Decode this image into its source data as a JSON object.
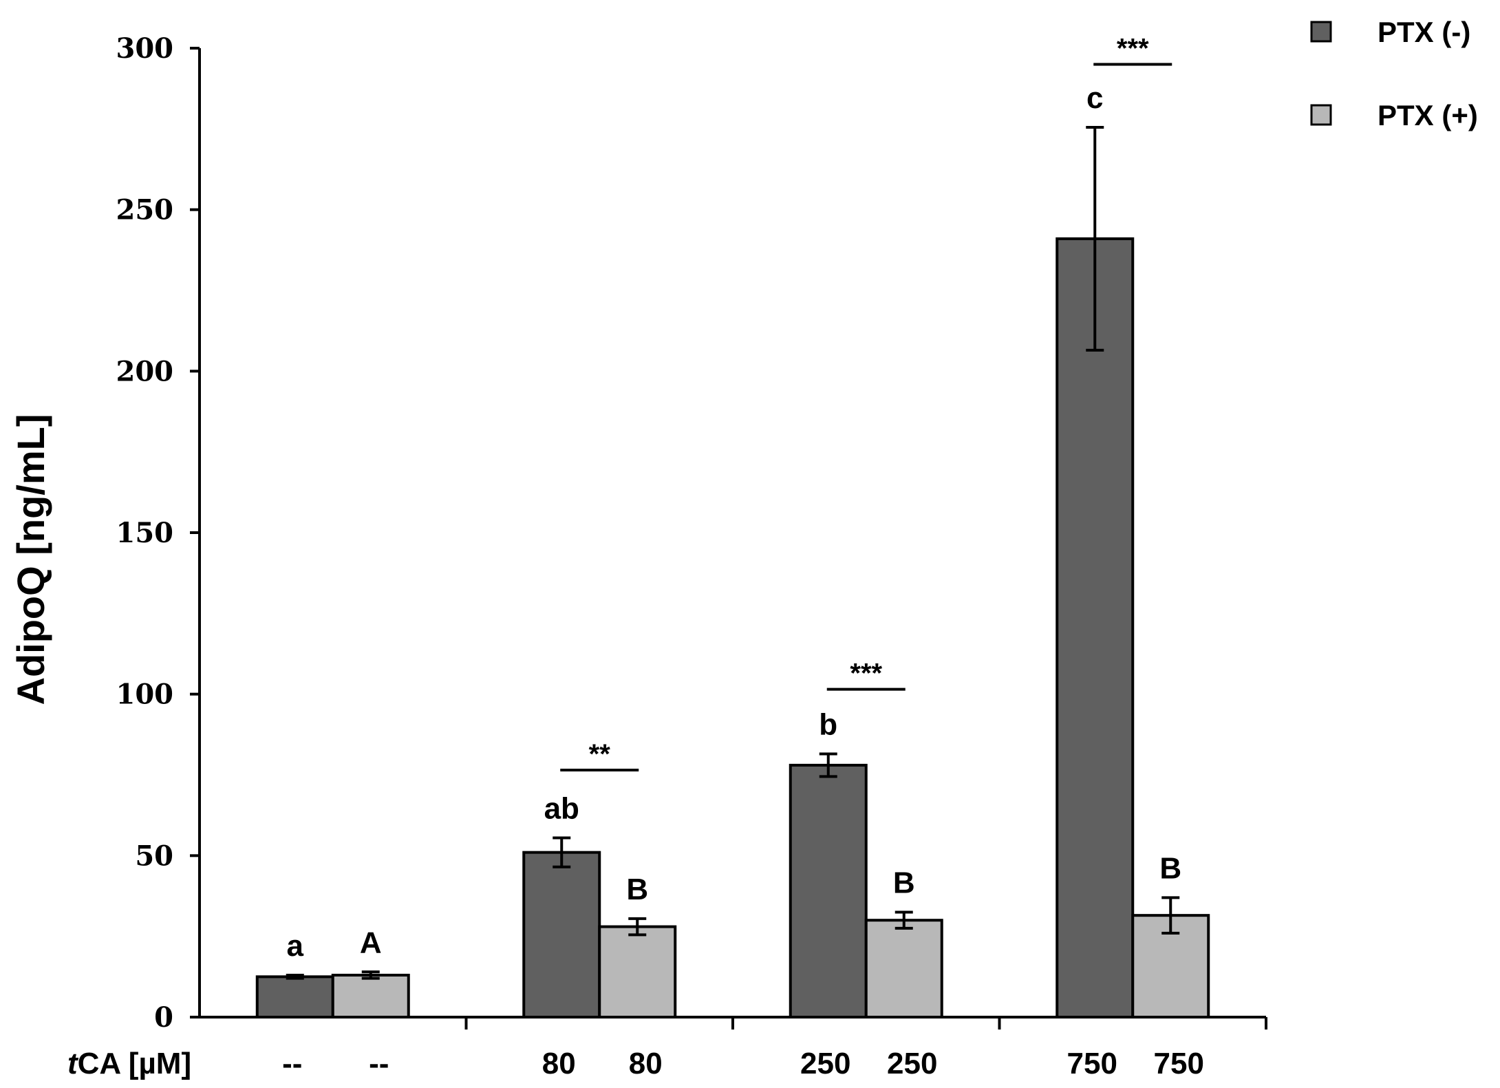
{
  "chart_data": {
    "type": "bar",
    "ylabel": "AdipoQ [ng/mL]",
    "xlabel_italic": "t",
    "xlabel_rest": "CA [µM]",
    "ylim": [
      0,
      300
    ],
    "yticks": [
      0,
      50,
      100,
      150,
      200,
      250,
      300
    ],
    "categories": [
      "--",
      "80",
      "250",
      "750"
    ],
    "series": [
      {
        "name": "PTX (-)",
        "color": "#606060",
        "values": [
          12.5,
          51,
          78,
          241
        ],
        "errors": [
          0.5,
          4.5,
          3.5,
          34.5
        ],
        "tick_labels": [
          "--",
          "80",
          "250",
          "750"
        ],
        "letters": [
          "a",
          "ab",
          "b",
          "c"
        ]
      },
      {
        "name": "PTX (+)",
        "color": "#b8b8b8",
        "values": [
          13,
          28,
          30,
          31.5
        ],
        "errors": [
          1,
          2.5,
          2.5,
          5.5
        ],
        "tick_labels": [
          "--",
          "80",
          "250",
          "750"
        ],
        "letters": [
          "A",
          "B",
          "B",
          "B"
        ]
      }
    ],
    "significance": [
      {
        "category_index": 1,
        "label": "**",
        "y": 76.5
      },
      {
        "category_index": 2,
        "label": "***",
        "y": 101.5
      },
      {
        "category_index": 3,
        "label": "***",
        "y": 295
      }
    ],
    "legend": [
      {
        "name": "PTX (-)",
        "color": "#606060"
      },
      {
        "name": "PTX (+)",
        "color": "#b8b8b8"
      }
    ],
    "legend_position": "top-right",
    "grid": false
  }
}
